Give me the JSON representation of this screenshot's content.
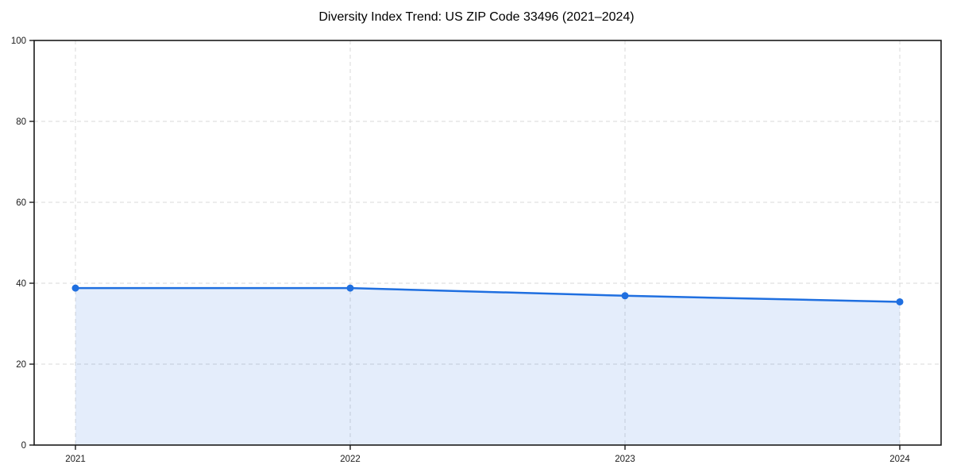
{
  "title": "Diversity Index Trend: US ZIP Code 33496 (2021–2024)",
  "chart_data": {
    "type": "area",
    "title": "Diversity Index Trend: US ZIP Code 33496 (2021–2024)",
    "xlabel": "",
    "ylabel": "",
    "categories": [
      "2021",
      "2022",
      "2023",
      "2024"
    ],
    "x": [
      2021,
      2022,
      2023,
      2024
    ],
    "series": [
      {
        "name": "Diversity Index",
        "values": [
          38.8,
          38.8,
          36.9,
          35.4
        ]
      }
    ],
    "ylim": [
      0,
      100
    ],
    "yticks": [
      0,
      20,
      40,
      60,
      80,
      100
    ],
    "xticks": [
      "2021",
      "2022",
      "2023",
      "2024"
    ],
    "grid": "dashed-both-axes",
    "legend_position": "none",
    "colors": {
      "line": "#1f6fe0",
      "marker": "#1f6fe0",
      "fill": "#1f6fe0",
      "fill_opacity": 0.12,
      "grid": "#d9d9d9",
      "spine": "#1a1a1a",
      "background": "#ffffff",
      "tick_label": "#1a1a1a",
      "title_text": "#000000"
    }
  }
}
